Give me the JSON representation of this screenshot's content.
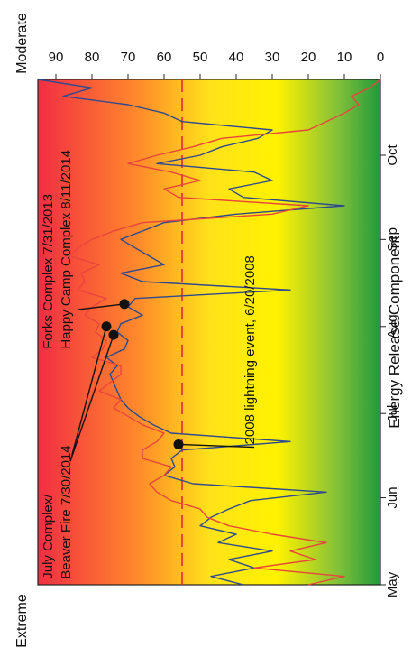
{
  "chart_data": {
    "type": "line",
    "orientation_note": "rotated",
    "ylabel": "Energy Release Component",
    "ylim": [
      0,
      95
    ],
    "yticks": [
      0,
      10,
      20,
      30,
      40,
      50,
      60,
      70,
      80,
      90
    ],
    "ytick_labels": [
      "0",
      "10",
      "20",
      "30",
      "40",
      "50",
      "60",
      "70",
      "80",
      "90"
    ],
    "xlim": [
      0,
      180
    ],
    "xticks": [
      0,
      31,
      61,
      92,
      123,
      153
    ],
    "xtick_labels": [
      "May",
      "Jun",
      "Jul",
      "Aug",
      "Sep",
      "Oct"
    ],
    "threshold": {
      "value": 55,
      "color": "#e0283c",
      "style": "dashed"
    },
    "bands": {
      "top_label": "Extreme",
      "bottom_label": "Moderate"
    },
    "background_gradient": [
      "#1f9a3a",
      "#9ccb3c",
      "#fff200",
      "#ffd21f",
      "#ff7d2a",
      "#f22d43"
    ],
    "series": [
      {
        "color": "#2f4a8e",
        "x": [
          0,
          3,
          6,
          9,
          12,
          15,
          18,
          21,
          24,
          27,
          30,
          33,
          36,
          39,
          42,
          45,
          48,
          51,
          54,
          57,
          60,
          63,
          66,
          69,
          72,
          75,
          78,
          81,
          84,
          87,
          90,
          93,
          96,
          99,
          102,
          105,
          108,
          111,
          114,
          117,
          120,
          123,
          126,
          129,
          132,
          135,
          138,
          141,
          144,
          147,
          150,
          153,
          156,
          159,
          162,
          165,
          168,
          171,
          174,
          177,
          180
        ],
        "values": [
          38,
          47,
          35,
          42,
          30,
          45,
          40,
          50,
          47,
          42,
          36,
          15,
          52,
          60,
          57,
          58,
          55,
          25,
          58,
          63,
          67,
          70,
          72,
          73,
          74,
          75,
          73,
          76,
          71,
          70,
          73,
          72,
          66,
          70,
          68,
          25,
          66,
          72,
          60,
          64,
          68,
          72,
          66,
          60,
          40,
          10,
          38,
          42,
          30,
          35,
          62,
          50,
          44,
          34,
          30,
          55,
          60,
          70,
          88,
          80,
          95
        ]
      },
      {
        "color": "#e8453c",
        "x": [
          0,
          3,
          6,
          9,
          12,
          15,
          18,
          21,
          24,
          27,
          30,
          33,
          36,
          39,
          42,
          45,
          48,
          51,
          54,
          57,
          60,
          63,
          66,
          69,
          72,
          75,
          78,
          81,
          84,
          87,
          90,
          93,
          96,
          99,
          102,
          105,
          108,
          111,
          114,
          117,
          120,
          123,
          126,
          129,
          132,
          135,
          138,
          141,
          144,
          147,
          150,
          153,
          156,
          159,
          162,
          165,
          168,
          171,
          174,
          177,
          180
        ],
        "values": [
          20,
          10,
          35,
          18,
          25,
          15,
          30,
          42,
          48,
          50,
          58,
          62,
          64,
          60,
          58,
          66,
          66,
          62,
          60,
          66,
          70,
          74,
          72,
          78,
          75,
          72,
          72,
          80,
          77,
          76,
          79,
          78,
          82,
          80,
          76,
          84,
          82,
          83,
          78,
          86,
          84,
          80,
          74,
          66,
          30,
          20,
          56,
          60,
          50,
          58,
          70,
          62,
          52,
          44,
          20,
          15,
          10,
          6,
          8,
          3,
          0
        ]
      }
    ],
    "annotations": [
      {
        "text": "July Complex/",
        "x": 2,
        "y": 91
      },
      {
        "text": "Beaver Fire 7/30/2014",
        "x": 2,
        "y": 86
      },
      {
        "text": "Forks Complex 7/31/2013",
        "x": 84,
        "y": 91
      },
      {
        "text": "Happy Camp Complex 8/11/2014",
        "x": 84,
        "y": 86
      },
      {
        "text": "2008 lightning event, 6/20/2008",
        "x": 50,
        "y": 35
      }
    ],
    "markers": [
      {
        "x": 50,
        "y": 56
      },
      {
        "x": 89,
        "y": 74
      },
      {
        "x": 92,
        "y": 76
      },
      {
        "x": 100,
        "y": 71
      }
    ]
  }
}
